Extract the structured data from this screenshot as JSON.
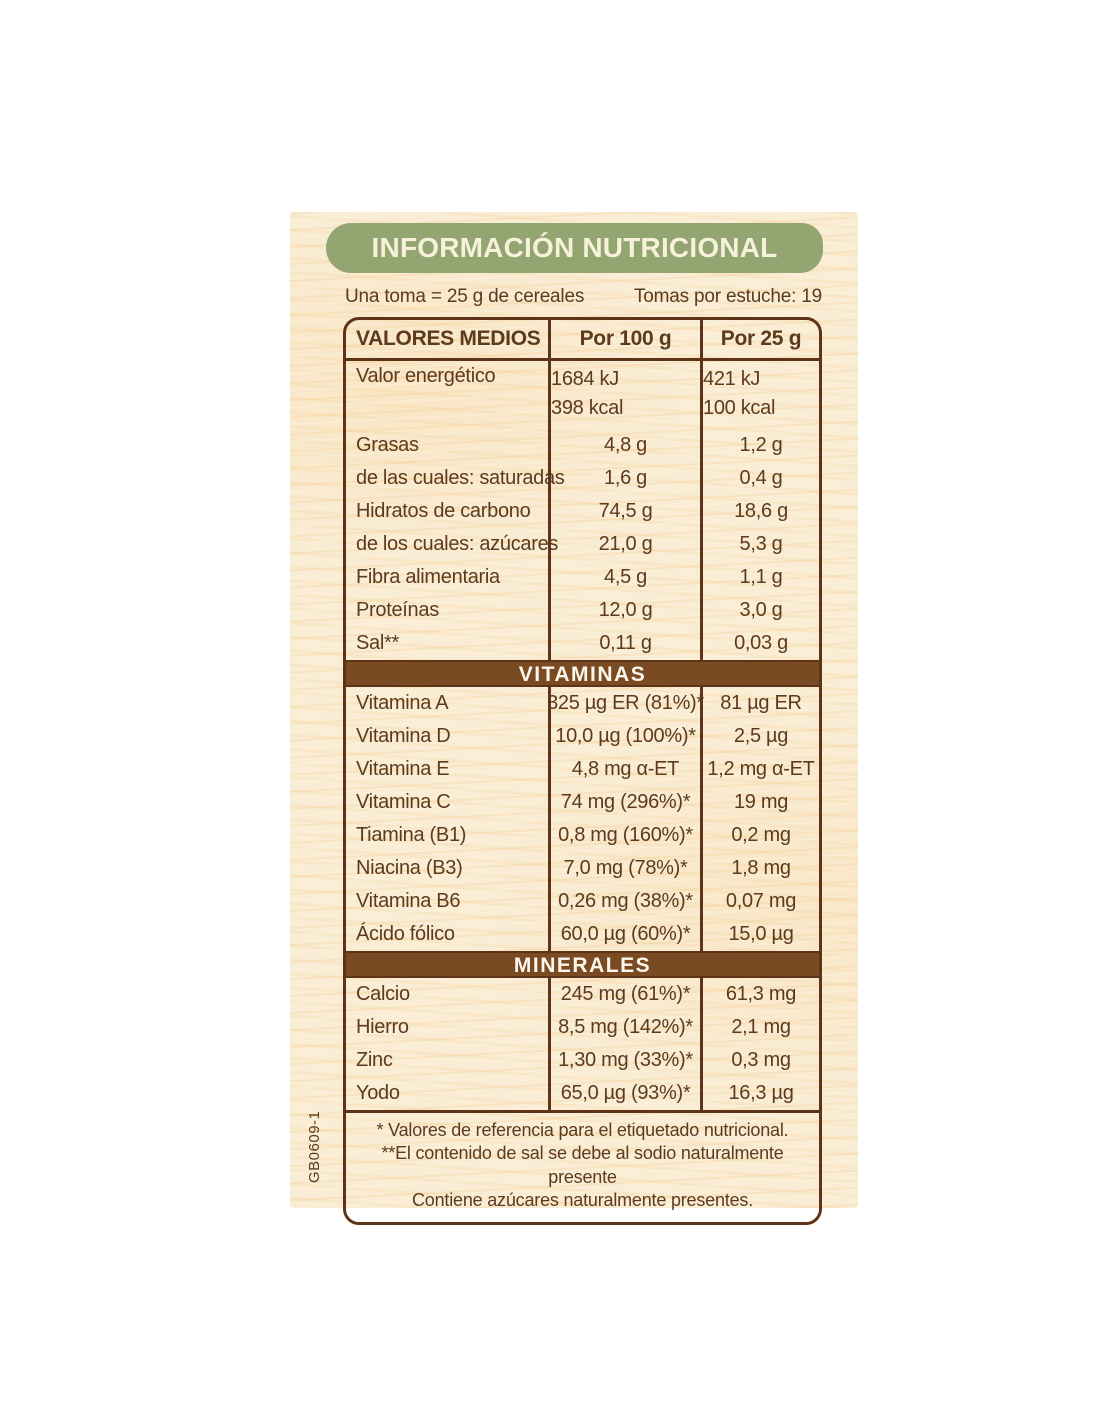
{
  "header": {
    "title": "INFORMACIÓN NUTRICIONAL",
    "serving_left": "Una toma = 25 g de cereales",
    "serving_right": "Tomas por estuche: 19"
  },
  "table": {
    "columns": [
      "VALORES MEDIOS",
      "Por 100 g",
      "Por 25 g"
    ],
    "rows": [
      {
        "type": "item",
        "label": "Valor energético",
        "per100": [
          "1684 kJ",
          "398 kcal"
        ],
        "per25": [
          "421 kJ",
          "100 kcal"
        ]
      },
      {
        "type": "item",
        "label": "Grasas",
        "per100": "4,8 g",
        "per25": "1,2 g"
      },
      {
        "type": "item",
        "label": "de las cuales: saturadas",
        "per100": "1,6 g",
        "per25": "0,4 g"
      },
      {
        "type": "item",
        "label": "Hidratos de carbono",
        "per100": "74,5 g",
        "per25": "18,6 g"
      },
      {
        "type": "item",
        "label": "de los cuales: azúcares",
        "per100": "21,0 g",
        "per25": "5,3 g"
      },
      {
        "type": "item",
        "label": "Fibra alimentaria",
        "per100": "4,5 g",
        "per25": "1,1 g"
      },
      {
        "type": "item",
        "label": "Proteínas",
        "per100": "12,0 g",
        "per25": "3,0 g"
      },
      {
        "type": "item",
        "label": "Sal**",
        "per100": "0,11 g",
        "per25": "0,03 g"
      },
      {
        "type": "band",
        "label": "VITAMINAS"
      },
      {
        "type": "item",
        "label": "Vitamina A",
        "per100": "325 µg ER (81%)*",
        "per25": "81 µg ER"
      },
      {
        "type": "item",
        "label": "Vitamina D",
        "per100": "10,0 µg (100%)*",
        "per25": "2,5 µg"
      },
      {
        "type": "item",
        "label": "Vitamina E",
        "per100": "4,8 mg α-ET",
        "per25": "1,2 mg α-ET"
      },
      {
        "type": "item",
        "label": "Vitamina C",
        "per100": "74 mg (296%)*",
        "per25": "19 mg"
      },
      {
        "type": "item",
        "label": "Tiamina (B1)",
        "per100": "0,8 mg (160%)*",
        "per25": "0,2 mg"
      },
      {
        "type": "item",
        "label": "Niacina (B3)",
        "per100": "7,0 mg (78%)*",
        "per25": "1,8 mg"
      },
      {
        "type": "item",
        "label": "Vitamina B6",
        "per100": "0,26 mg (38%)*",
        "per25": "0,07 mg"
      },
      {
        "type": "item",
        "label": "Ácido fólico",
        "per100": "60,0 µg (60%)*",
        "per25": "15,0 µg"
      },
      {
        "type": "band",
        "label": "MINERALES"
      },
      {
        "type": "item",
        "label": "Calcio",
        "per100": "245 mg (61%)*",
        "per25": "61,3 mg"
      },
      {
        "type": "item",
        "label": "Hierro",
        "per100": "8,5 mg (142%)*",
        "per25": "2,1 mg"
      },
      {
        "type": "item",
        "label": "Zinc",
        "per100": "1,30 mg (33%)*",
        "per25": "0,3 mg"
      },
      {
        "type": "item",
        "label": "Yodo",
        "per100": "65,0 µg (93%)*",
        "per25": "16,3 µg"
      }
    ],
    "footnotes": [
      "* Valores de referencia para el etiquetado nutricional.",
      "**El contenido de sal se debe al sodio naturalmente presente",
      "Contiene azúcares naturalmente presentes."
    ]
  },
  "side_code": "GB0609-1",
  "colors": {
    "banner_green": "#93a571",
    "banner_text": "#f7f1dc",
    "band_brown": "#7a4a22",
    "band_text": "#fcf7ec",
    "text_brown": "#5d3a1e",
    "border_brown": "#5e3418",
    "parchment": "#f9edd6",
    "page_background": "#ffffff"
  }
}
